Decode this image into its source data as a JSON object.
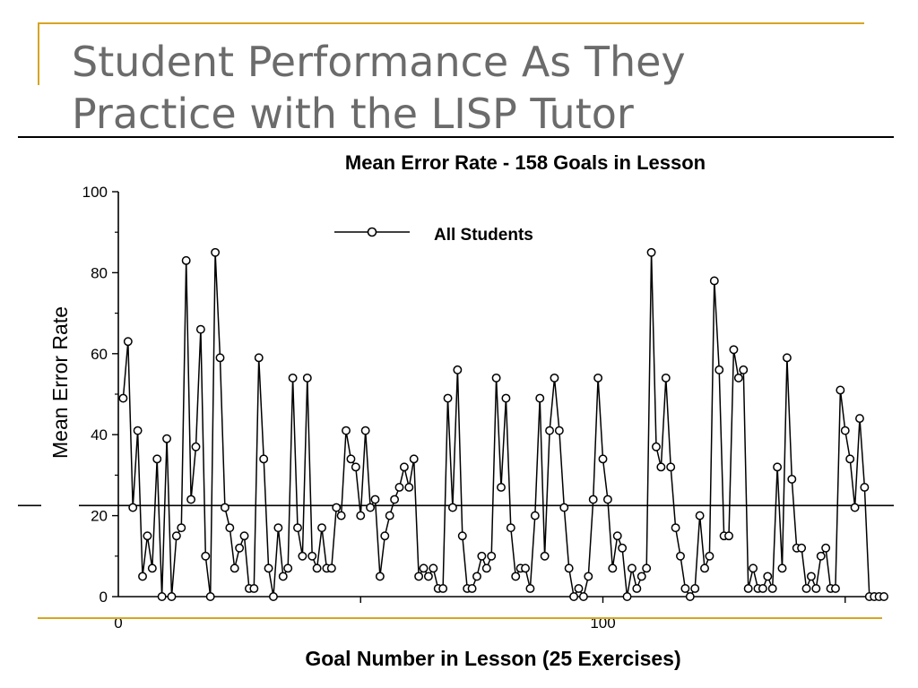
{
  "slide": {
    "title_line1": "Student Performance As They",
    "title_line2": "Practice with the LISP Tutor",
    "accent_color": "#d6a521",
    "title_color": "#6b6b6b"
  },
  "chart_data": {
    "type": "line",
    "title": "Mean Error Rate - 158 Goals in Lesson",
    "xlabel": "Goal Number in Lesson (25 Exercises)",
    "ylabel": "Mean Error Rate",
    "xlim": [
      0,
      158
    ],
    "ylim": [
      0,
      100
    ],
    "xticks": [
      0,
      100
    ],
    "yticks": [
      0,
      20,
      40,
      60,
      80,
      100
    ],
    "grid": false,
    "legend": "top-center",
    "marker": "open-circle",
    "reference_line": 22.5,
    "series": [
      {
        "name": "All Students",
        "color": "#000000",
        "x": [
          1,
          2,
          3,
          4,
          5,
          6,
          7,
          8,
          9,
          10,
          11,
          12,
          13,
          14,
          15,
          16,
          17,
          18,
          19,
          20,
          21,
          22,
          23,
          24,
          25,
          26,
          27,
          28,
          29,
          30,
          31,
          32,
          33,
          34,
          35,
          36,
          37,
          38,
          39,
          40,
          41,
          42,
          43,
          44,
          45,
          46,
          47,
          48,
          49,
          50,
          51,
          52,
          53,
          54,
          55,
          56,
          57,
          58,
          59,
          60,
          61,
          62,
          63,
          64,
          65,
          66,
          67,
          68,
          69,
          70,
          71,
          72,
          73,
          74,
          75,
          76,
          77,
          78,
          79,
          80,
          81,
          82,
          83,
          84,
          85,
          86,
          87,
          88,
          89,
          90,
          91,
          92,
          93,
          94,
          95,
          96,
          97,
          98,
          99,
          100,
          101,
          102,
          103,
          104,
          105,
          106,
          107,
          108,
          109,
          110,
          111,
          112,
          113,
          114,
          115,
          116,
          117,
          118,
          119,
          120,
          121,
          122,
          123,
          124,
          125,
          126,
          127,
          128,
          129,
          130,
          131,
          132,
          133,
          134,
          135,
          136,
          137,
          138,
          139,
          140,
          141,
          142,
          143,
          144,
          145,
          146,
          147,
          148,
          149,
          150,
          151,
          152,
          153,
          154,
          155,
          156,
          157,
          158
        ],
        "values": [
          49,
          63,
          22,
          41,
          5,
          15,
          7,
          34,
          0,
          39,
          0,
          15,
          17,
          83,
          24,
          37,
          66,
          10,
          0,
          85,
          59,
          22,
          17,
          7,
          12,
          15,
          2,
          2,
          59,
          34,
          7,
          0,
          17,
          5,
          7,
          54,
          17,
          10,
          54,
          10,
          7,
          17,
          7,
          7,
          22,
          20,
          41,
          34,
          32,
          20,
          41,
          22,
          24,
          5,
          15,
          20,
          24,
          27,
          32,
          27,
          34,
          5,
          7,
          5,
          7,
          2,
          2,
          49,
          22,
          56,
          15,
          2,
          2,
          5,
          10,
          7,
          10,
          54,
          27,
          49,
          17,
          5,
          7,
          7,
          2,
          20,
          49,
          10,
          41,
          54,
          41,
          22,
          7,
          0,
          2,
          0,
          5,
          24,
          54,
          34,
          24,
          7,
          15,
          12,
          0,
          7,
          2,
          5,
          7,
          85,
          37,
          32,
          54,
          32,
          17,
          10,
          2,
          0,
          2,
          20,
          7,
          10,
          78,
          56,
          15,
          15,
          61,
          54,
          56,
          2,
          7,
          2,
          2,
          5,
          2,
          32,
          7,
          59,
          29,
          12,
          12,
          2,
          5,
          2,
          10,
          12,
          2,
          2,
          51,
          41,
          34,
          22,
          44,
          27,
          0,
          0,
          0,
          0
        ]
      }
    ]
  }
}
